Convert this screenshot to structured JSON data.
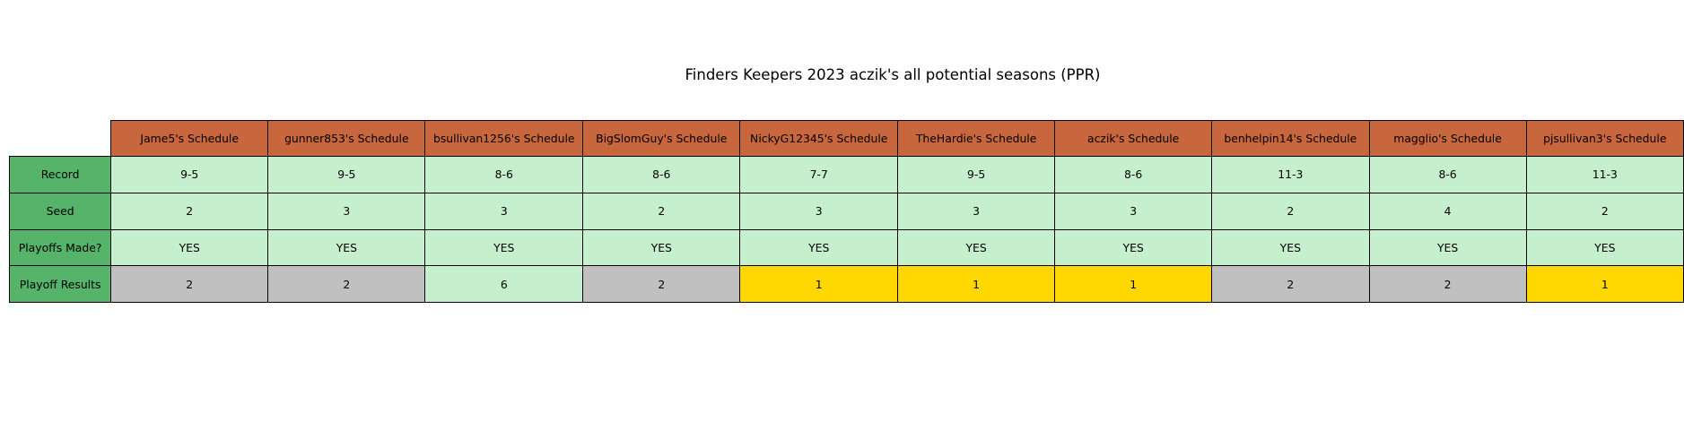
{
  "chart_data": {
    "type": "table",
    "title": "Finders Keepers 2023 aczik's all potential seasons (PPR)",
    "columns": [
      "Jame5's Schedule",
      "gunner853's Schedule",
      "bsullivan1256's Schedule",
      "BigSlomGuy's Schedule",
      "NickyG12345's Schedule",
      "TheHardie's Schedule",
      "aczik's Schedule",
      "benhelpin14's Schedule",
      "magglio's Schedule",
      "pjsullivan3's Schedule"
    ],
    "rows": [
      {
        "label": "Record",
        "values": [
          "9-5",
          "9-5",
          "8-6",
          "8-6",
          "7-7",
          "9-5",
          "8-6",
          "11-3",
          "8-6",
          "11-3"
        ]
      },
      {
        "label": "Seed",
        "values": [
          "2",
          "3",
          "3",
          "2",
          "3",
          "3",
          "3",
          "2",
          "4",
          "2"
        ]
      },
      {
        "label": "Playoffs Made?",
        "values": [
          "YES",
          "YES",
          "YES",
          "YES",
          "YES",
          "YES",
          "YES",
          "YES",
          "YES",
          "YES"
        ]
      },
      {
        "label": "Playoff Results",
        "values": [
          "2",
          "2",
          "6",
          "2",
          "1",
          "1",
          "1",
          "2",
          "2",
          "1"
        ]
      }
    ],
    "colors": {
      "header": "#c8673e",
      "row_label": "#56b46a",
      "cell_default": "#c6efce",
      "result_1": "#ffd700",
      "result_2": "#c0c0c0"
    }
  }
}
